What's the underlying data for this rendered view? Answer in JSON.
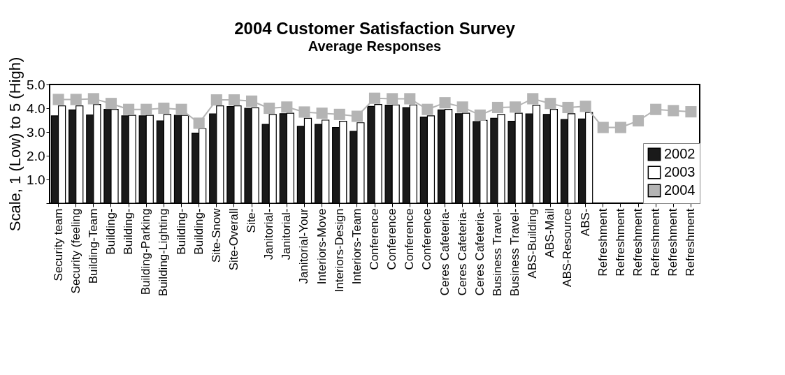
{
  "chart_data": {
    "type": "bar",
    "title": "2004 Customer Satisfaction Survey",
    "subtitle": "Average Responses",
    "ylabel": "Scale, 1 (Low) to 5 (High)",
    "categories": [
      "Security team",
      "Security (feeling",
      "Building-Team",
      "Building-",
      "Building-",
      "Building-Parking",
      "Building-Lighting",
      "Building-",
      "Building-",
      "Site-Snow",
      "Site-Overall",
      "Site-",
      "Janitorial-",
      "Janitorial-",
      "Janitorial-Your",
      "Interiors-Move",
      "Interiors-Design",
      "Interiors-Team",
      "Conference",
      "Conference",
      "Conference",
      "Conference",
      "Ceres Cafeteria-",
      "Ceres Cafeteria-",
      "Ceres Cafeteria-",
      "Business Travel-",
      "Business Travel-",
      "ABS-Building",
      "ABS-Mail",
      "ABS-Resource",
      "ABS-",
      "Refreshment",
      "Refreshment",
      "Refreshment",
      "Refreshment",
      "Refreshment",
      "Refreshment"
    ],
    "series": [
      {
        "name": "2002",
        "color": "#1a1a1a",
        "values": [
          3.68,
          3.93,
          3.72,
          3.95,
          3.68,
          3.68,
          3.47,
          3.7,
          2.95,
          3.76,
          4.07,
          4.0,
          3.32,
          3.77,
          3.24,
          3.32,
          3.19,
          3.03,
          4.08,
          4.13,
          4.03,
          3.63,
          3.93,
          3.77,
          3.44,
          3.58,
          3.45,
          3.76,
          3.74,
          3.53,
          3.55,
          null,
          null,
          null,
          null,
          null,
          null
        ]
      },
      {
        "name": "2003",
        "color": "#ffffff",
        "values": [
          4.1,
          4.1,
          4.16,
          3.95,
          3.7,
          3.7,
          3.74,
          3.7,
          3.14,
          4.1,
          4.1,
          4.02,
          3.74,
          3.79,
          3.58,
          3.5,
          3.45,
          3.39,
          4.16,
          4.14,
          4.14,
          3.68,
          3.95,
          3.79,
          3.49,
          3.74,
          3.79,
          4.13,
          3.95,
          3.77,
          3.82,
          null,
          null,
          null,
          null,
          null,
          null
        ]
      },
      {
        "name": "2004",
        "type": "line",
        "color": "#b4b4b4",
        "marker": "square",
        "values": [
          4.37,
          4.37,
          4.4,
          4.2,
          3.95,
          3.95,
          4.0,
          3.95,
          3.37,
          4.35,
          4.35,
          4.3,
          4.0,
          4.05,
          3.84,
          3.79,
          3.74,
          3.66,
          4.42,
          4.4,
          4.4,
          3.95,
          4.23,
          4.05,
          3.71,
          4.03,
          4.05,
          4.4,
          4.2,
          4.03,
          4.08,
          3.19,
          3.19,
          3.47,
          3.95,
          3.9,
          3.85
        ]
      }
    ],
    "ylim": [
      0,
      5
    ],
    "yticks": [
      {
        "value": 0,
        "label": null
      },
      {
        "value": 1,
        "label": "1.0"
      },
      {
        "value": 2,
        "label": "2.0"
      },
      {
        "value": 3,
        "label": "3.0"
      },
      {
        "value": 4,
        "label": "4.0"
      },
      {
        "value": 5,
        "label": "5.0"
      }
    ],
    "grid": false,
    "legend": "bottom right"
  }
}
